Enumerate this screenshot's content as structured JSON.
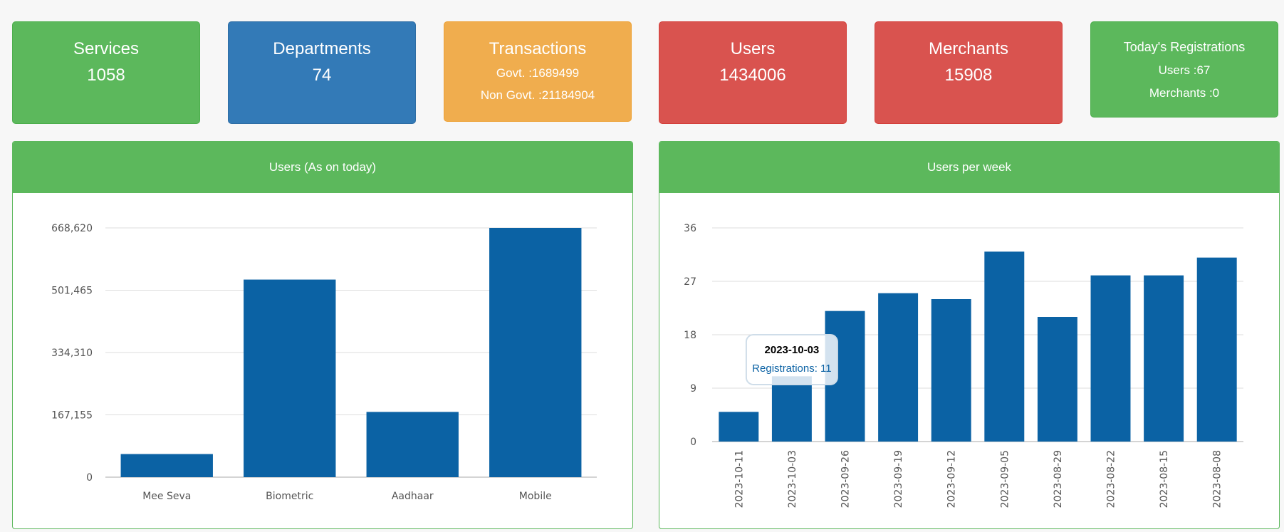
{
  "cards": {
    "services": {
      "title": "Services",
      "value": "1058",
      "color": "#5cb85c"
    },
    "departments": {
      "title": "Departments",
      "value": "74",
      "color": "#337ab7"
    },
    "transactions": {
      "title": "Transactions",
      "govt": "Govt. :1689499",
      "non_govt": "Non Govt. :21184904",
      "color": "#f0ad4e"
    },
    "users": {
      "title": "Users",
      "value": "1434006",
      "color": "#d9534f"
    },
    "merchants": {
      "title": "Merchants",
      "value": "15908",
      "color": "#d9534f"
    },
    "registrations": {
      "title": "Today's Registrations",
      "users": "Users :67",
      "merchants": "Merchants :0",
      "color": "#5cb85c"
    }
  },
  "panels": {
    "users_today": {
      "header": "Users (As on today)"
    },
    "users_week": {
      "header": "Users per week"
    }
  },
  "chart_data": [
    {
      "type": "bar",
      "title": "Users (As on today)",
      "categories": [
        "Mee Seva",
        "Biometric",
        "Aadhaar",
        "Mobile"
      ],
      "values": [
        62000,
        530000,
        175000,
        668620
      ],
      "yticks": [
        "0",
        "167,155",
        "334,310",
        "501,465",
        "668,620"
      ],
      "ylim": [
        0,
        668620
      ],
      "grid": true,
      "bar_color": "#0b62a4"
    },
    {
      "type": "bar",
      "title": "Users per week",
      "categories": [
        "2023-10-11",
        "2023-10-03",
        "2023-09-26",
        "2023-09-19",
        "2023-09-12",
        "2023-09-05",
        "2023-08-29",
        "2023-08-22",
        "2023-08-15",
        "2023-08-08"
      ],
      "series": [
        {
          "name": "Registrations",
          "values": [
            5,
            11,
            22,
            25,
            24,
            32,
            21,
            28,
            28,
            31
          ]
        }
      ],
      "yticks": [
        "0",
        "9",
        "18",
        "27",
        "36"
      ],
      "ylim": [
        0,
        36
      ],
      "grid": true,
      "bar_color": "#0b62a4",
      "tooltip": {
        "title": "2023-10-03",
        "text": "Registrations: 11"
      }
    }
  ]
}
